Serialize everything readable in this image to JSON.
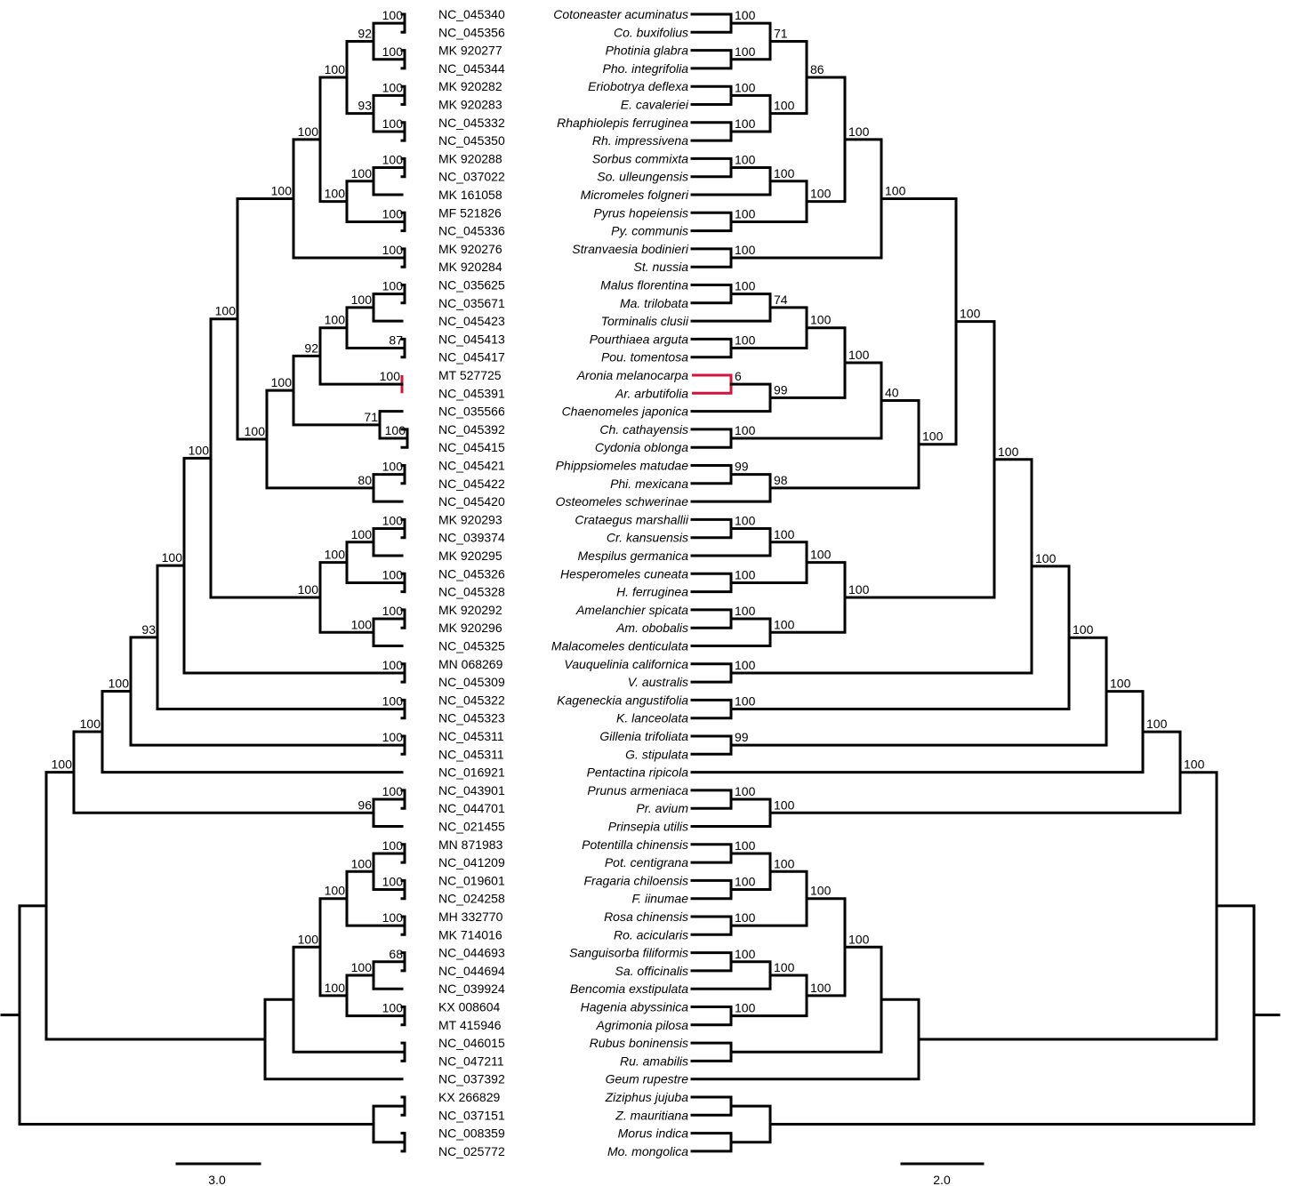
{
  "diagram": {
    "type": "tanglegram",
    "highlight_color": "#d2143a",
    "highlight_pair": [
      "MT 527725",
      "NC_045391"
    ],
    "taxa": [
      {
        "acc": "NC_045340",
        "species": "Cotoneaster acuminatus"
      },
      {
        "acc": "NC_045356",
        "species": "Co. buxifolius"
      },
      {
        "acc": "MK 920277",
        "species": "Photinia glabra"
      },
      {
        "acc": "NC_045344",
        "species": "Pho. integrifolia"
      },
      {
        "acc": "MK 920282",
        "species": "Eriobotrya deflexa"
      },
      {
        "acc": "MK 920283",
        "species": "E. cavaleriei"
      },
      {
        "acc": "NC_045332",
        "species": "Rhaphiolepis ferruginea"
      },
      {
        "acc": "NC_045350",
        "species": "Rh. impressivena"
      },
      {
        "acc": "MK 920288",
        "species": "Sorbus commixta"
      },
      {
        "acc": "NC_037022",
        "species": "So. ulleungensis"
      },
      {
        "acc": "MK 161058",
        "species": "Micromeles folgneri"
      },
      {
        "acc": "MF 521826",
        "species": "Pyrus hopeiensis"
      },
      {
        "acc": "NC_045336",
        "species": "Py. communis"
      },
      {
        "acc": "MK 920276",
        "species": "Stranvaesia bodinieri"
      },
      {
        "acc": "MK 920284",
        "species": "St. nussia"
      },
      {
        "acc": "NC_035625",
        "species": "Malus florentina"
      },
      {
        "acc": "NC_035671",
        "species": "Ma. trilobata"
      },
      {
        "acc": "NC_045423",
        "species": "Torminalis clusii"
      },
      {
        "acc": "NC_045413",
        "species": "Pourthiaea arguta"
      },
      {
        "acc": "NC_045417",
        "species": "Pou. tomentosa"
      },
      {
        "acc": "MT 527725",
        "species": "Aronia melanocarpa"
      },
      {
        "acc": "NC_045391",
        "species": "Ar. arbutifolia"
      },
      {
        "acc": "NC_035566",
        "species": "Chaenomeles japonica"
      },
      {
        "acc": "NC_045392",
        "species": "Ch. cathayensis"
      },
      {
        "acc": "NC_045415",
        "species": "Cydonia oblonga"
      },
      {
        "acc": "NC_045421",
        "species": "Phippsiomeles matudae"
      },
      {
        "acc": "NC_045422",
        "species": "Phi. mexicana"
      },
      {
        "acc": "NC_045420",
        "species": "Osteomeles schwerinae"
      },
      {
        "acc": "MK 920293",
        "species": "Crataegus marshallii"
      },
      {
        "acc": "NC_039374",
        "species": "Cr. kansuensis"
      },
      {
        "acc": "MK 920295",
        "species": "Mespilus germanica"
      },
      {
        "acc": "NC_045326",
        "species": "Hesperomeles cuneata"
      },
      {
        "acc": "NC_045328",
        "species": "H. ferruginea"
      },
      {
        "acc": "MK 920292",
        "species": "Amelanchier spicata"
      },
      {
        "acc": "MK 920296",
        "species": "Am. obobalis"
      },
      {
        "acc": "NC_045325",
        "species": "Malacomeles denticulata"
      },
      {
        "acc": "MN 068269",
        "species": "Vauquelinia californica"
      },
      {
        "acc": "NC_045309",
        "species": "V. australis"
      },
      {
        "acc": "NC_045322",
        "species": "Kageneckia angustifolia"
      },
      {
        "acc": "NC_045323",
        "species": "K. lanceolata"
      },
      {
        "acc": "NC_045311",
        "species": "Gillenia trifoliata"
      },
      {
        "acc": "NC_045311",
        "species": "G. stipulata"
      },
      {
        "acc": "NC_016921",
        "species": "Pentactina ripicola"
      },
      {
        "acc": "NC_043901",
        "species": "Prunus armeniaca"
      },
      {
        "acc": "NC_044701",
        "species": "Pr. avium"
      },
      {
        "acc": "NC_021455",
        "species": "Prinsepia utilis"
      },
      {
        "acc": "MN 871983",
        "species": "Potentilla chinensis"
      },
      {
        "acc": "NC_041209",
        "species": "Pot. centigrana"
      },
      {
        "acc": "NC_019601",
        "species": "Fragaria chiloensis"
      },
      {
        "acc": "NC_024258",
        "species": "F. iinumae"
      },
      {
        "acc": "MH 332770",
        "species": "Rosa chinensis"
      },
      {
        "acc": "MK 714016",
        "species": "Ro. acicularis"
      },
      {
        "acc": "NC_044693",
        "species": "Sanguisorba filiformis"
      },
      {
        "acc": "NC_044694",
        "species": "Sa. officinalis"
      },
      {
        "acc": "NC_039924",
        "species": "Bencomia exstipulata"
      },
      {
        "acc": "KX 008604",
        "species": "Hagenia abyssinica"
      },
      {
        "acc": "MT 415946",
        "species": "Agrimonia pilosa"
      },
      {
        "acc": "NC_046015",
        "species": "Rubus boninensis"
      },
      {
        "acc": "NC_047211",
        "species": "Ru. amabilis"
      },
      {
        "acc": "NC_037392",
        "species": "Geum rupestre"
      },
      {
        "acc": "KX 266829",
        "species": "Ziziphus jujuba"
      },
      {
        "acc": "NC_037151",
        "species": "Z. mauritiana"
      },
      {
        "acc": "NC_008359",
        "species": "Morus indica"
      },
      {
        "acc": "NC_025772",
        "species": "Mo. mongolica"
      }
    ],
    "left_tree": {
      "scale_label": "3.0",
      "support": [
        "100",
        "100",
        "92",
        "100",
        "100",
        "93",
        "100",
        "100",
        "100",
        "100",
        "100",
        "100",
        "100",
        "100",
        "100",
        "100",
        "87",
        "100",
        "100",
        "92",
        "100",
        "71",
        "100",
        "100",
        "80",
        "100",
        "100",
        "100",
        "100",
        "100",
        "100",
        "100",
        "100",
        "100",
        "100",
        "100",
        "100",
        "100",
        "93",
        "100",
        "100",
        "100",
        "100",
        "96",
        "100",
        "100",
        "100",
        "100",
        "100",
        "100",
        "68",
        "100",
        "100",
        "100",
        "100"
      ]
    },
    "right_tree": {
      "scale_label": "2.0",
      "support": [
        "100",
        "100",
        "71",
        "100",
        "100",
        "100",
        "86",
        "100",
        "100",
        "100",
        "100",
        "100",
        "100",
        "100",
        "100",
        "74",
        "100",
        "100",
        "6",
        "99",
        "100",
        "100",
        "40",
        "99",
        "98",
        "100",
        "100",
        "100",
        "100",
        "100",
        "100",
        "100",
        "100",
        "100",
        "100",
        "100",
        "100",
        "100",
        "100",
        "99",
        "100",
        "100",
        "100",
        "100",
        "100",
        "100",
        "100",
        "100",
        "100",
        "100",
        "100",
        "100",
        "100",
        "100",
        "100"
      ]
    }
  }
}
